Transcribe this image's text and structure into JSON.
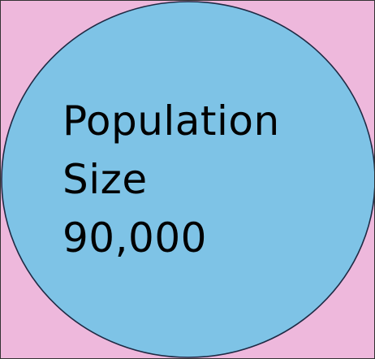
{
  "diagram": {
    "background_color": "#EEB8DC",
    "circle_fill": "#7EC3E6",
    "circle_stroke": "#1F2A44",
    "label": {
      "line1": "Population",
      "line2": "Size",
      "line3": "90,000"
    }
  }
}
